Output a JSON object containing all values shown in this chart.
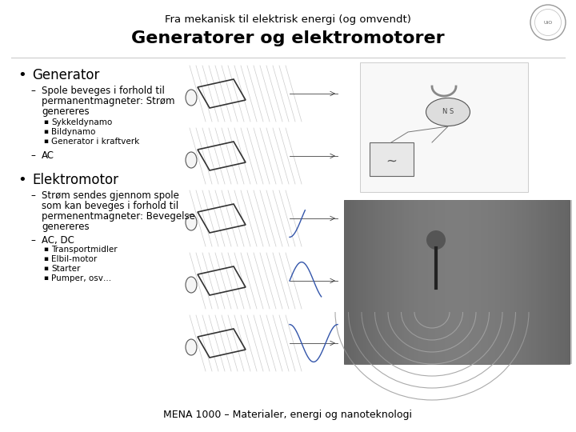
{
  "bg_color": "#ffffff",
  "subtitle": "Fra mekanisk til elektrisk energi (og omvendt)",
  "title": "Generatorer og elektromotorer",
  "subtitle_fontsize": 9.5,
  "title_fontsize": 16,
  "footer": "MENA 1000 – Materialer, energi og nanoteknologi",
  "footer_fontsize": 9,
  "bullet1": "Generator",
  "bullet1_fontsize": 12,
  "dash1a_lines": [
    "Spole beveges i forhold til",
    "permanentmagneter: Strøm",
    "genereres"
  ],
  "sub1a": [
    "Sykkeldynamo",
    "Bildynamo",
    "Generator i kraftverk"
  ],
  "dash1b": "AC",
  "bullet2": "Elektromotor",
  "bullet2_fontsize": 12,
  "dash2a_lines": [
    "Strøm sendes gjennom spole",
    "som kan beveges i forhold til",
    "permenentmagneter: Bevegelse",
    "genereres"
  ],
  "dash2b": "AC, DC",
  "sub2b": [
    "Transportmidler",
    "Elbil-motor",
    "Starter",
    "Pumper, osv…"
  ],
  "text_color": "#000000",
  "body_fontsize": 8.5,
  "sub_fontsize": 7.5,
  "diag_color": "#e8e8e8",
  "photo1_color": "#d0d0d0",
  "photo2_color": "#888888",
  "logo_color": "#aaaaaa"
}
